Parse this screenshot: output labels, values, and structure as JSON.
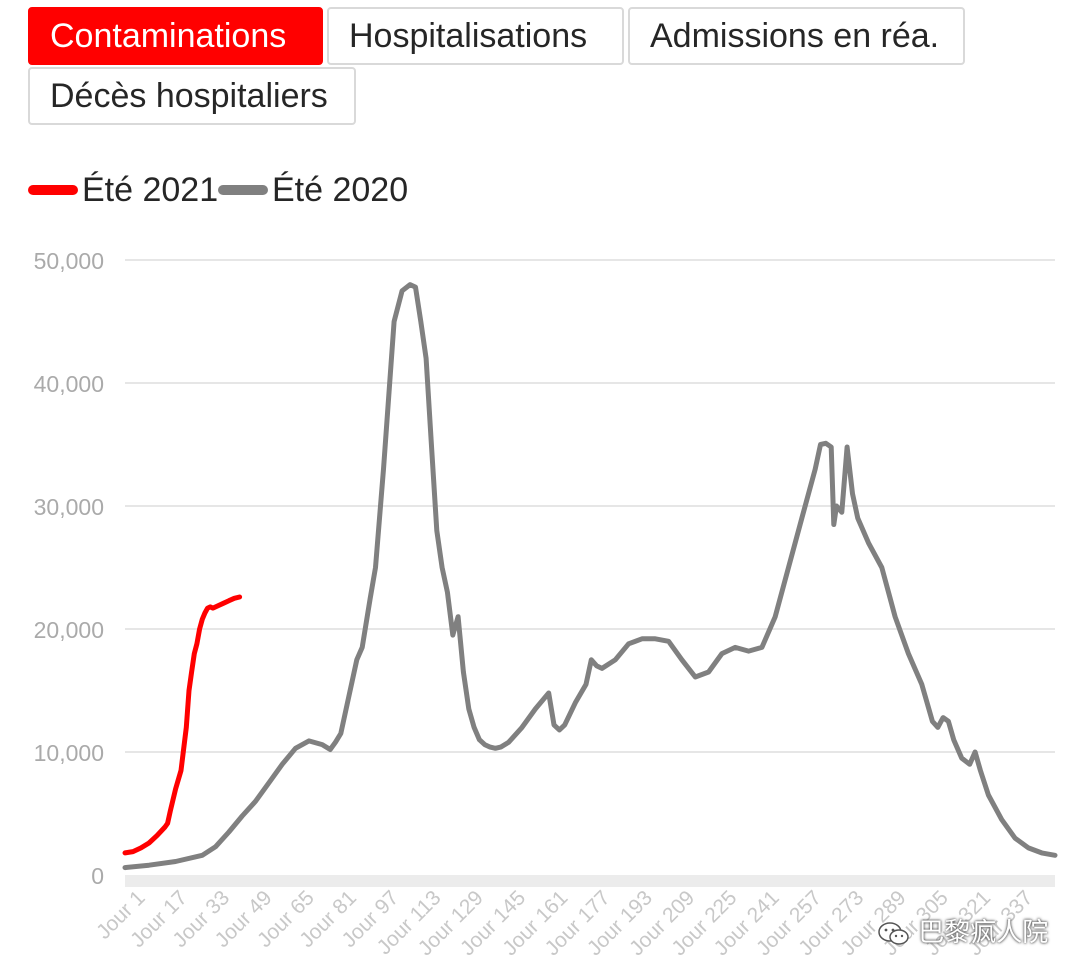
{
  "tabs": [
    {
      "label": "Contaminations",
      "active": true
    },
    {
      "label": "Hospitalisations",
      "active": false
    },
    {
      "label": "Admissions en réa.",
      "active": false
    },
    {
      "label": "Décès hospitaliers",
      "active": false
    }
  ],
  "legend": [
    {
      "label": "Été 2021",
      "color": "#ff0000"
    },
    {
      "label": "Été 2020",
      "color": "#808080"
    }
  ],
  "watermark": {
    "text": "巴黎疯人院",
    "icon": "wechat-icon"
  },
  "chart_data": {
    "type": "line",
    "title": "",
    "xlabel": "",
    "ylabel": "",
    "ylim": [
      0,
      50000
    ],
    "yticks": [
      0,
      10000,
      20000,
      30000,
      40000,
      50000
    ],
    "ytick_labels": [
      "0",
      "10,000",
      "20,000",
      "30,000",
      "40,000",
      "50,000"
    ],
    "xlim": [
      1,
      350
    ],
    "xtick_labels": [
      "Jour 1",
      "Jour 17",
      "Jour 33",
      "Jour 49",
      "Jour 65",
      "Jour 81",
      "Jour 97",
      "Jour 113",
      "Jour 129",
      "Jour 145",
      "Jour 161",
      "Jour 177",
      "Jour 193",
      "Jour 209",
      "Jour 225",
      "Jour 241",
      "Jour 257",
      "Jour 273",
      "Jour 289",
      "Jour 305",
      "Jour 321",
      "Jour 337"
    ],
    "grid": true,
    "series": [
      {
        "name": "Été 2021",
        "color": "#ff0000",
        "x": [
          1,
          4,
          7,
          10,
          13,
          16,
          17,
          18,
          20,
          22,
          24,
          25,
          26,
          27,
          28,
          29,
          30,
          31,
          32,
          33,
          34,
          36,
          38,
          40,
          42,
          44
        ],
        "y": [
          1800,
          1900,
          2200,
          2600,
          3200,
          3900,
          4200,
          5200,
          7000,
          8500,
          12000,
          15000,
          16500,
          18000,
          18800,
          20000,
          20800,
          21300,
          21700,
          21800,
          21700,
          21900,
          22100,
          22300,
          22500,
          22600
        ]
      },
      {
        "name": "Été 2020",
        "color": "#808080",
        "x": [
          1,
          10,
          20,
          30,
          35,
          40,
          45,
          50,
          55,
          60,
          65,
          70,
          75,
          78,
          80,
          82,
          85,
          88,
          90,
          93,
          95,
          98,
          100,
          102,
          105,
          108,
          110,
          112,
          114,
          116,
          118,
          120,
          122,
          124,
          126,
          128,
          130,
          132,
          134,
          136,
          138,
          140,
          142,
          145,
          150,
          155,
          160,
          162,
          164,
          166,
          170,
          174,
          176,
          178,
          180,
          185,
          190,
          195,
          200,
          205,
          210,
          215,
          220,
          225,
          230,
          235,
          240,
          245,
          250,
          255,
          260,
          262,
          264,
          266,
          267,
          268,
          270,
          272,
          274,
          276,
          280,
          285,
          290,
          295,
          300,
          302,
          304,
          306,
          308,
          310,
          312,
          315,
          318,
          320,
          322,
          325,
          330,
          335,
          340,
          345,
          350
        ],
        "y": [
          600,
          800,
          1100,
          1600,
          2300,
          3500,
          4800,
          6000,
          7500,
          9000,
          10300,
          10900,
          10600,
          10200,
          10800,
          11500,
          14500,
          17500,
          18500,
          22500,
          25000,
          33000,
          39000,
          45000,
          47500,
          48000,
          47800,
          45000,
          42000,
          35000,
          28000,
          25000,
          23000,
          19500,
          21000,
          16500,
          13500,
          12000,
          11000,
          10600,
          10400,
          10300,
          10400,
          10800,
          12000,
          13500,
          14800,
          12200,
          11800,
          12200,
          14000,
          15500,
          17500,
          17000,
          16800,
          17500,
          18800,
          19200,
          19200,
          19000,
          17500,
          16100,
          16500,
          18000,
          18500,
          18200,
          18500,
          21000,
          25000,
          29000,
          33000,
          35000,
          35100,
          34800,
          28500,
          30000,
          29500,
          34800,
          31000,
          29000,
          27000,
          25000,
          21000,
          18000,
          15500,
          14000,
          12500,
          12000,
          12800,
          12500,
          11000,
          9500,
          9000,
          10000,
          8500,
          6500,
          4500,
          3000,
          2200,
          1800,
          1600
        ]
      }
    ]
  }
}
